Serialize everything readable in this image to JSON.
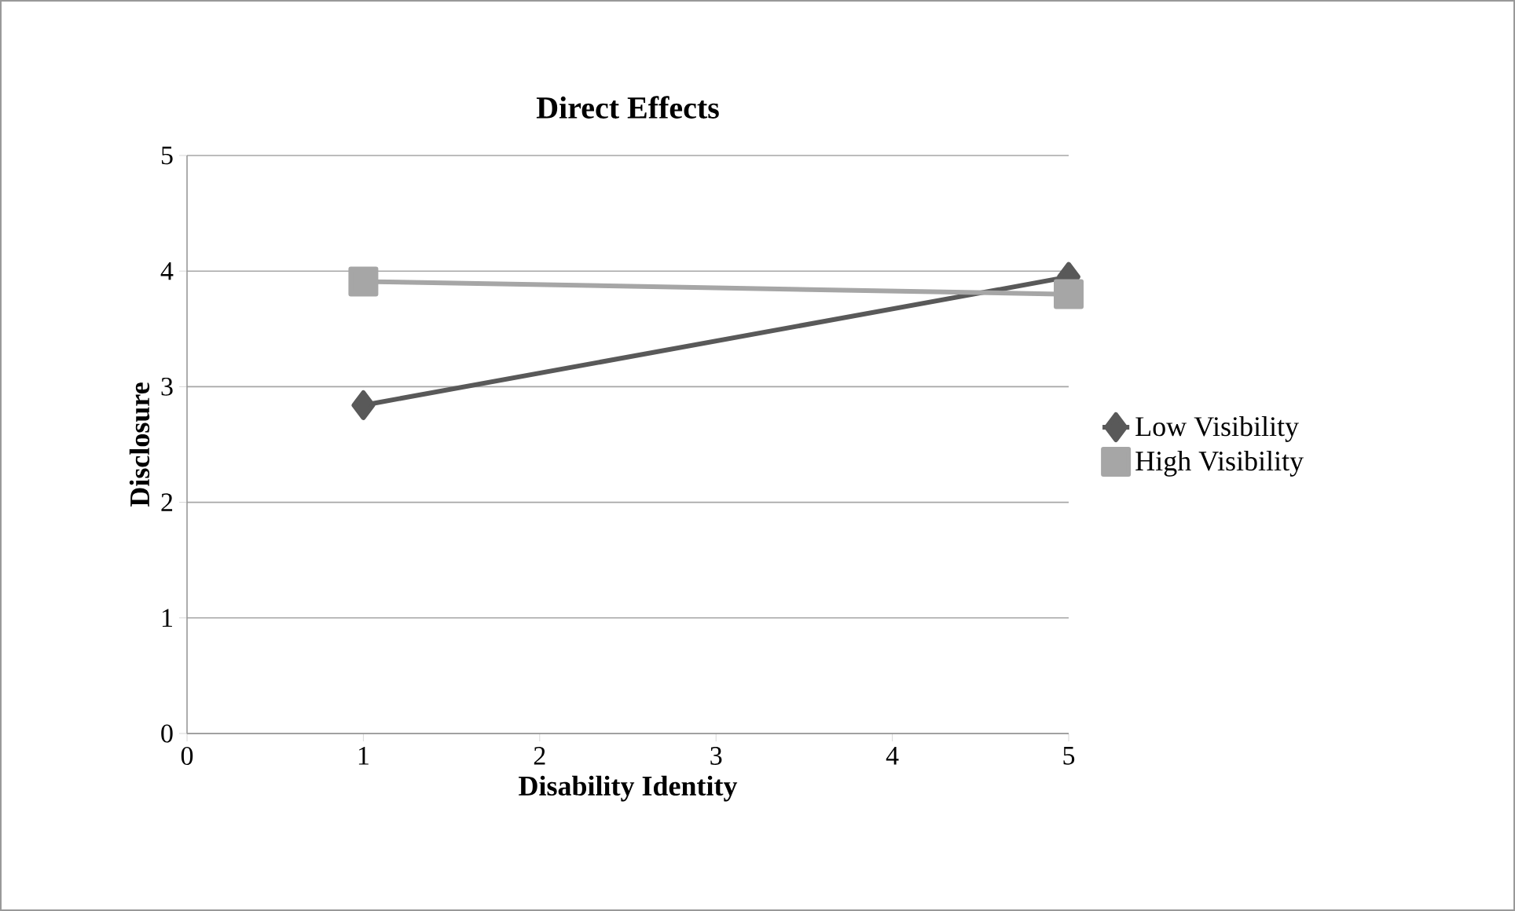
{
  "chart_data": {
    "type": "line",
    "title": "Direct Effects",
    "xlabel": "Disability Identity",
    "ylabel": "Disclosure",
    "x": [
      1,
      5
    ],
    "series": [
      {
        "name": "Low Visibility",
        "color": "#595959",
        "marker": "diamond",
        "values": [
          2.84,
          3.95
        ]
      },
      {
        "name": "High Visibility",
        "color": "#a6a6a6",
        "marker": "square",
        "values": [
          3.91,
          3.8
        ]
      }
    ],
    "xlim": [
      0,
      5
    ],
    "xticks": [
      0,
      1,
      2,
      3,
      4,
      5
    ],
    "ylim": [
      0,
      5
    ],
    "yticks": [
      0,
      1,
      2,
      3,
      4,
      5
    ],
    "grid": "y",
    "legend": "right"
  }
}
